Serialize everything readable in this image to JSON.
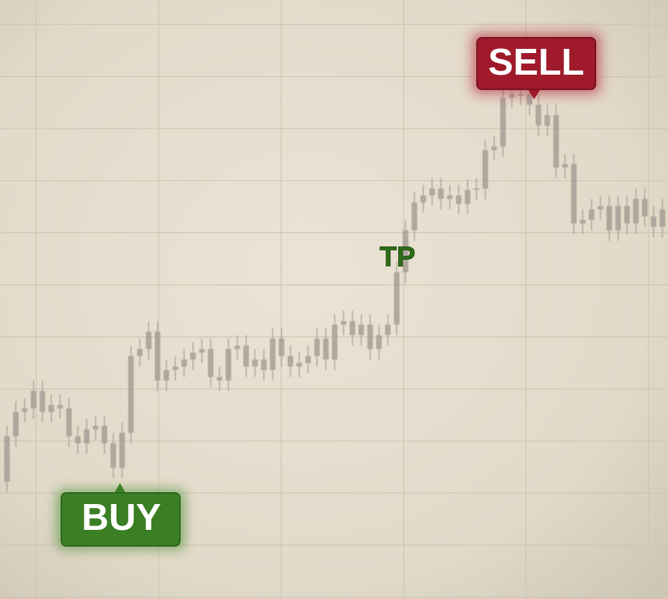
{
  "chart_data": {
    "type": "candlestick",
    "annotations": [
      "BUY",
      "TP",
      "SELL"
    ],
    "color": "#9d978f",
    "ylim": [
      0,
      858
    ],
    "open": [
      168,
      233,
      268,
      273,
      298,
      268,
      278,
      273,
      233,
      223,
      243,
      248,
      223,
      188,
      238,
      348,
      358,
      383,
      313,
      328,
      333,
      343,
      353,
      358,
      318,
      313,
      358,
      363,
      333,
      343,
      328,
      373,
      348,
      333,
      338,
      348,
      373,
      343,
      393,
      398,
      378,
      393,
      358,
      378,
      393,
      468,
      528,
      568,
      578,
      588,
      573,
      578,
      566,
      586,
      588,
      643,
      648,
      718,
      723,
      723,
      708,
      678,
      693,
      618,
      623,
      538,
      543,
      558,
      563,
      528,
      563,
      538,
      573,
      548,
      533
    ],
    "high": [
      248,
      283,
      288,
      313,
      313,
      293,
      293,
      288,
      248,
      258,
      263,
      263,
      238,
      253,
      363,
      373,
      398,
      398,
      343,
      348,
      358,
      368,
      373,
      373,
      333,
      373,
      378,
      378,
      358,
      358,
      388,
      388,
      363,
      353,
      363,
      388,
      388,
      408,
      413,
      413,
      408,
      408,
      393,
      408,
      483,
      543,
      583,
      593,
      603,
      603,
      593,
      593,
      601,
      603,
      658,
      663,
      733,
      738,
      738,
      738,
      723,
      708,
      708,
      638,
      638,
      558,
      573,
      578,
      578,
      578,
      578,
      588,
      588,
      563,
      573
    ],
    "low": [
      153,
      218,
      253,
      258,
      253,
      253,
      258,
      218,
      208,
      208,
      228,
      208,
      173,
      173,
      223,
      333,
      343,
      298,
      298,
      313,
      318,
      328,
      338,
      303,
      298,
      298,
      343,
      318,
      318,
      313,
      313,
      333,
      318,
      318,
      323,
      333,
      328,
      328,
      378,
      363,
      363,
      343,
      343,
      363,
      378,
      453,
      513,
      553,
      563,
      558,
      558,
      551,
      551,
      571,
      573,
      628,
      633,
      703,
      708,
      693,
      663,
      663,
      603,
      603,
      523,
      523,
      528,
      543,
      513,
      513,
      523,
      523,
      533,
      518,
      518
    ],
    "close": [
      233,
      268,
      273,
      298,
      268,
      278,
      273,
      233,
      223,
      243,
      248,
      223,
      188,
      238,
      348,
      358,
      383,
      313,
      328,
      333,
      343,
      353,
      358,
      318,
      313,
      358,
      363,
      333,
      343,
      328,
      373,
      348,
      333,
      338,
      348,
      373,
      343,
      393,
      398,
      378,
      393,
      358,
      378,
      393,
      468,
      528,
      568,
      578,
      588,
      573,
      578,
      566,
      586,
      588,
      643,
      648,
      718,
      723,
      723,
      708,
      678,
      693,
      618,
      623,
      538,
      543,
      558,
      563,
      528,
      563,
      538,
      573,
      548,
      533,
      558
    ]
  }
}
